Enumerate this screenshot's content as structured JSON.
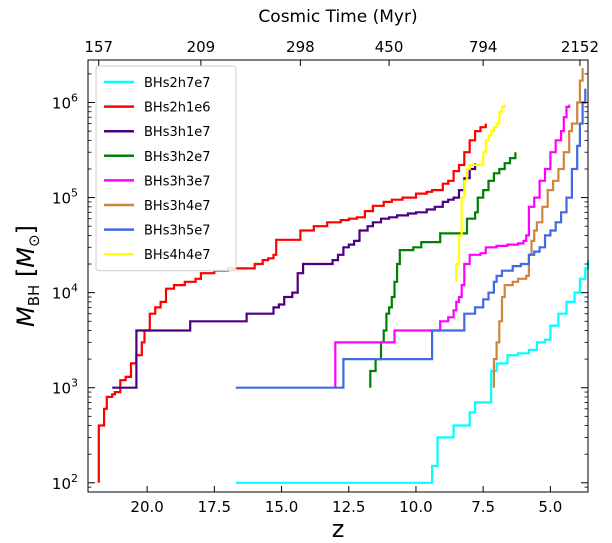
{
  "chart_data": {
    "type": "line",
    "xlabel": "z",
    "ylabel_main": "M",
    "ylabel_sub": "BH",
    "ylabel_unit_open": " [",
    "ylabel_unit_main": "M",
    "ylabel_unit_sub": "⊙",
    "ylabel_unit_close": "]",
    "top_xlabel": "Cosmic Time (Myr)",
    "xlim": [
      22.2,
      3.6
    ],
    "ylim": [
      80,
      2800000
    ],
    "y_scale": "log",
    "x_reversed": true,
    "x_ticks": [
      {
        "value": 20.0,
        "label": "20.0"
      },
      {
        "value": 17.5,
        "label": "17.5"
      },
      {
        "value": 15.0,
        "label": "15.0"
      },
      {
        "value": 12.5,
        "label": "12.5"
      },
      {
        "value": 10.0,
        "label": "10.0"
      },
      {
        "value": 7.5,
        "label": "7.5"
      },
      {
        "value": 5.0,
        "label": "5.0"
      }
    ],
    "top_ticks": [
      {
        "z": 21.8,
        "label": "157"
      },
      {
        "z": 18.0,
        "label": "209"
      },
      {
        "z": 14.3,
        "label": "298"
      },
      {
        "z": 11.0,
        "label": "450"
      },
      {
        "z": 7.5,
        "label": "794"
      },
      {
        "z": 3.9,
        "label": "2152"
      }
    ],
    "y_ticks": [
      {
        "value": 100,
        "base": "10",
        "exp": "2"
      },
      {
        "value": 1000,
        "base": "10",
        "exp": "3"
      },
      {
        "value": 10000,
        "base": "10",
        "exp": "4"
      },
      {
        "value": 100000,
        "base": "10",
        "exp": "5"
      },
      {
        "value": 1000000,
        "base": "10",
        "exp": "6"
      }
    ],
    "legend_position": "top-left",
    "series": [
      {
        "name": "BHs2h7e7",
        "color": "#00ffff",
        "points": [
          [
            16.7,
            100
          ],
          [
            9.4,
            100
          ],
          [
            9.4,
            150
          ],
          [
            9.2,
            150
          ],
          [
            9.2,
            300
          ],
          [
            8.6,
            300
          ],
          [
            8.6,
            400
          ],
          [
            8.0,
            400
          ],
          [
            8.0,
            550
          ],
          [
            7.8,
            550
          ],
          [
            7.8,
            700
          ],
          [
            7.2,
            700
          ],
          [
            7.2,
            1500
          ],
          [
            7.0,
            1500
          ],
          [
            7.0,
            1800
          ],
          [
            6.8,
            1800
          ],
          [
            6.6,
            2200
          ],
          [
            6.2,
            2300
          ],
          [
            5.8,
            2500
          ],
          [
            5.5,
            3000
          ],
          [
            5.2,
            3200
          ],
          [
            5.0,
            4500
          ],
          [
            4.7,
            6000
          ],
          [
            4.4,
            8000
          ],
          [
            4.1,
            10000
          ],
          [
            3.9,
            14000
          ],
          [
            3.7,
            18000
          ],
          [
            3.6,
            22000
          ]
        ]
      },
      {
        "name": "BHs2h1e6",
        "color": "#ff0000",
        "points": [
          [
            21.8,
            100
          ],
          [
            21.8,
            400
          ],
          [
            21.7,
            400
          ],
          [
            21.6,
            600
          ],
          [
            21.5,
            800
          ],
          [
            21.3,
            850
          ],
          [
            21.2,
            900
          ],
          [
            21.0,
            1200
          ],
          [
            20.8,
            1300
          ],
          [
            20.6,
            1800
          ],
          [
            20.4,
            2200
          ],
          [
            20.2,
            3000
          ],
          [
            20.1,
            4000
          ],
          [
            19.9,
            6000
          ],
          [
            19.7,
            7000
          ],
          [
            19.5,
            8000
          ],
          [
            19.3,
            11000
          ],
          [
            19.0,
            12000
          ],
          [
            18.6,
            13000
          ],
          [
            18.2,
            14000
          ],
          [
            18.0,
            16000
          ],
          [
            17.5,
            17000
          ],
          [
            17.0,
            18000
          ],
          [
            16.4,
            18000
          ],
          [
            16.0,
            20000
          ],
          [
            15.7,
            22000
          ],
          [
            15.5,
            23000
          ],
          [
            15.3,
            25000
          ],
          [
            15.2,
            36000
          ],
          [
            14.6,
            36000
          ],
          [
            14.3,
            45000
          ],
          [
            13.8,
            50000
          ],
          [
            13.3,
            55000
          ],
          [
            12.8,
            58000
          ],
          [
            12.5,
            60000
          ],
          [
            12.2,
            62000
          ],
          [
            11.9,
            72000
          ],
          [
            11.6,
            82000
          ],
          [
            11.2,
            90000
          ],
          [
            10.9,
            95000
          ],
          [
            10.5,
            100000
          ],
          [
            10.0,
            110000
          ],
          [
            9.6,
            115000
          ],
          [
            9.4,
            120000
          ],
          [
            9.0,
            140000
          ],
          [
            8.8,
            150000
          ],
          [
            8.6,
            190000
          ],
          [
            8.4,
            220000
          ],
          [
            8.2,
            300000
          ],
          [
            8.0,
            400000
          ],
          [
            7.8,
            500000
          ],
          [
            7.6,
            550000
          ],
          [
            7.4,
            600000
          ]
        ]
      },
      {
        "name": "BHs3h1e7",
        "color": "#4b0082",
        "points": [
          [
            21.3,
            1000
          ],
          [
            20.5,
            1000
          ],
          [
            20.4,
            4000
          ],
          [
            18.6,
            4000
          ],
          [
            18.4,
            5000
          ],
          [
            16.5,
            5000
          ],
          [
            16.3,
            6000
          ],
          [
            15.5,
            6000
          ],
          [
            15.3,
            7000
          ],
          [
            15.1,
            7500
          ],
          [
            14.9,
            9000
          ],
          [
            14.6,
            10000
          ],
          [
            14.4,
            16000
          ],
          [
            14.2,
            20000
          ],
          [
            13.2,
            20000
          ],
          [
            13.1,
            22000
          ],
          [
            12.9,
            25000
          ],
          [
            12.7,
            30000
          ],
          [
            12.5,
            32000
          ],
          [
            12.3,
            35000
          ],
          [
            12.1,
            45000
          ],
          [
            11.8,
            50000
          ],
          [
            11.6,
            55000
          ],
          [
            11.3,
            60000
          ],
          [
            11.0,
            62000
          ],
          [
            10.7,
            65000
          ],
          [
            10.3,
            68000
          ],
          [
            10.0,
            70000
          ],
          [
            9.6,
            75000
          ],
          [
            9.3,
            80000
          ],
          [
            9.0,
            90000
          ],
          [
            8.8,
            95000
          ],
          [
            8.6,
            100000
          ],
          [
            8.4,
            120000
          ],
          [
            8.2,
            160000
          ],
          [
            8.0,
            200000
          ],
          [
            7.8,
            230000
          ]
        ]
      },
      {
        "name": "BHs3h2e7",
        "color": "#008000",
        "points": [
          [
            11.7,
            1000
          ],
          [
            11.7,
            1500
          ],
          [
            11.5,
            2000
          ],
          [
            11.3,
            3000
          ],
          [
            11.2,
            4000
          ],
          [
            11.1,
            6000
          ],
          [
            11.0,
            7000
          ],
          [
            10.9,
            9000
          ],
          [
            10.8,
            13000
          ],
          [
            10.7,
            20000
          ],
          [
            10.6,
            28000
          ],
          [
            10.2,
            28000
          ],
          [
            10.1,
            30000
          ],
          [
            9.9,
            30000
          ],
          [
            9.8,
            34000
          ],
          [
            9.2,
            34000
          ],
          [
            9.1,
            42000
          ],
          [
            8.2,
            42000
          ],
          [
            8.1,
            60000
          ],
          [
            7.8,
            70000
          ],
          [
            7.7,
            100000
          ],
          [
            7.5,
            120000
          ],
          [
            7.3,
            150000
          ],
          [
            7.1,
            180000
          ],
          [
            6.9,
            200000
          ],
          [
            6.7,
            230000
          ],
          [
            6.5,
            260000
          ],
          [
            6.3,
            300000
          ]
        ]
      },
      {
        "name": "BHs3h3e7",
        "color": "#ff00ff",
        "points": [
          [
            13.0,
            1000
          ],
          [
            13.0,
            3000
          ],
          [
            10.9,
            3000
          ],
          [
            10.8,
            4000
          ],
          [
            9.2,
            4000
          ],
          [
            9.1,
            5000
          ],
          [
            8.8,
            5500
          ],
          [
            8.6,
            6500
          ],
          [
            8.5,
            8000
          ],
          [
            8.4,
            9000
          ],
          [
            8.3,
            12000
          ],
          [
            8.2,
            20000
          ],
          [
            8.0,
            25000
          ],
          [
            7.6,
            26000
          ],
          [
            7.4,
            30000
          ],
          [
            7.0,
            31000
          ],
          [
            6.6,
            32000
          ],
          [
            6.2,
            33000
          ],
          [
            6.0,
            35000
          ],
          [
            5.9,
            40000
          ],
          [
            5.8,
            80000
          ],
          [
            5.6,
            100000
          ],
          [
            5.4,
            150000
          ],
          [
            5.2,
            200000
          ],
          [
            5.0,
            300000
          ],
          [
            4.8,
            400000
          ],
          [
            4.6,
            500000
          ],
          [
            4.5,
            700000
          ],
          [
            4.4,
            900000
          ],
          [
            4.3,
            950000
          ]
        ]
      },
      {
        "name": "BHs3h4e7",
        "color": "#cd853f",
        "points": [
          [
            7.1,
            1000
          ],
          [
            7.1,
            2000
          ],
          [
            7.0,
            3000
          ],
          [
            6.9,
            5000
          ],
          [
            6.8,
            9000
          ],
          [
            6.7,
            12000
          ],
          [
            6.4,
            13000
          ],
          [
            6.2,
            14000
          ],
          [
            5.9,
            15000
          ],
          [
            5.8,
            25000
          ],
          [
            5.7,
            35000
          ],
          [
            5.6,
            45000
          ],
          [
            5.5,
            55000
          ],
          [
            5.3,
            80000
          ],
          [
            5.1,
            120000
          ],
          [
            4.9,
            150000
          ],
          [
            4.7,
            200000
          ],
          [
            4.5,
            300000
          ],
          [
            4.3,
            500000
          ],
          [
            4.2,
            600000
          ],
          [
            4.0,
            1000000
          ],
          [
            3.9,
            1700000
          ],
          [
            3.8,
            2300000
          ]
        ]
      },
      {
        "name": "BHs3h5e7",
        "color": "#4169e1",
        "points": [
          [
            16.7,
            1000
          ],
          [
            12.7,
            1000
          ],
          [
            12.7,
            2000
          ],
          [
            9.4,
            2000
          ],
          [
            9.4,
            4000
          ],
          [
            8.3,
            4000
          ],
          [
            8.2,
            6000
          ],
          [
            7.8,
            7000
          ],
          [
            7.5,
            8500
          ],
          [
            7.3,
            10000
          ],
          [
            7.1,
            13000
          ],
          [
            7.0,
            15000
          ],
          [
            6.8,
            17000
          ],
          [
            6.4,
            19000
          ],
          [
            6.1,
            20000
          ],
          [
            5.9,
            20000
          ],
          [
            5.8,
            25000
          ],
          [
            5.6,
            27000
          ],
          [
            5.4,
            30000
          ],
          [
            5.2,
            40000
          ],
          [
            5.0,
            45000
          ],
          [
            4.8,
            55000
          ],
          [
            4.6,
            70000
          ],
          [
            4.4,
            100000
          ],
          [
            4.2,
            200000
          ],
          [
            4.0,
            350000
          ],
          [
            3.9,
            600000
          ],
          [
            3.8,
            1000000
          ],
          [
            3.7,
            1400000
          ]
        ]
      },
      {
        "name": "BHs4h4e7",
        "color": "#ffff00",
        "points": [
          [
            8.5,
            13000
          ],
          [
            8.5,
            20000
          ],
          [
            8.4,
            40000
          ],
          [
            8.3,
            100000
          ],
          [
            8.2,
            150000
          ],
          [
            8.1,
            200000
          ],
          [
            8.0,
            220000
          ],
          [
            7.6,
            220000
          ],
          [
            7.5,
            300000
          ],
          [
            7.4,
            400000
          ],
          [
            7.3,
            450000
          ],
          [
            7.2,
            500000
          ],
          [
            7.1,
            550000
          ],
          [
            7.0,
            600000
          ],
          [
            6.9,
            800000
          ],
          [
            6.8,
            900000
          ],
          [
            6.7,
            950000
          ]
        ]
      }
    ]
  }
}
